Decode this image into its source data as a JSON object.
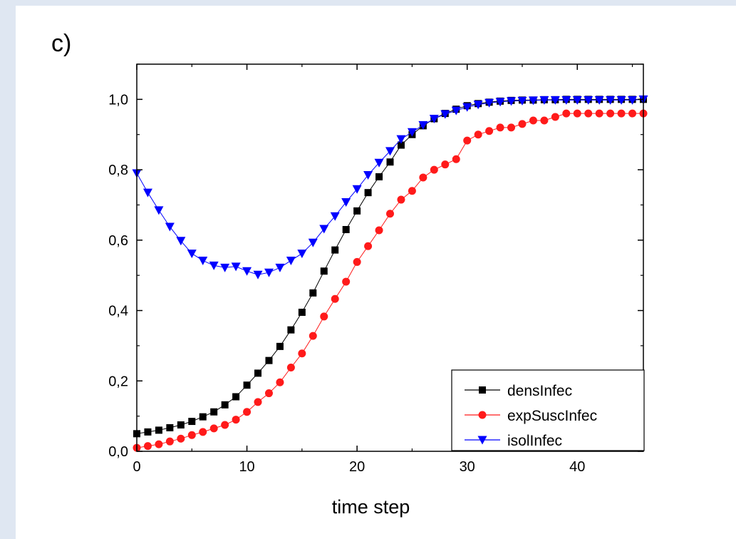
{
  "panel_label": "c)",
  "chart_data": {
    "type": "line",
    "xlabel": "time step",
    "ylabel": "",
    "xlim": [
      0,
      46
    ],
    "ylim": [
      0,
      1.1
    ],
    "x_ticks": [
      0,
      10,
      20,
      30,
      40
    ],
    "x_tick_labels": [
      "0",
      "10",
      "20",
      "30",
      "40"
    ],
    "y_ticks": [
      0.0,
      0.2,
      0.4,
      0.6,
      0.8,
      1.0
    ],
    "y_tick_labels": [
      "0,0",
      "0,2",
      "0,4",
      "0,6",
      "0,8",
      "1,0"
    ],
    "grid": false,
    "legend_position": "bottom-right",
    "x": [
      0,
      1,
      2,
      3,
      4,
      5,
      6,
      7,
      8,
      9,
      10,
      11,
      12,
      13,
      14,
      15,
      16,
      17,
      18,
      19,
      20,
      21,
      22,
      23,
      24,
      25,
      26,
      27,
      28,
      29,
      30,
      31,
      32,
      33,
      34,
      35,
      36,
      37,
      38,
      39,
      40,
      41,
      42,
      43,
      44,
      45,
      46
    ],
    "series": [
      {
        "name": "densInfec",
        "color": "#000000",
        "marker": "square",
        "values": [
          0.05,
          0.055,
          0.06,
          0.067,
          0.075,
          0.085,
          0.098,
          0.112,
          0.132,
          0.155,
          0.188,
          0.222,
          0.258,
          0.298,
          0.345,
          0.395,
          0.45,
          0.512,
          0.572,
          0.63,
          0.683,
          0.735,
          0.78,
          0.822,
          0.87,
          0.9,
          0.925,
          0.945,
          0.96,
          0.972,
          0.982,
          0.988,
          0.992,
          0.995,
          0.997,
          0.998,
          0.998,
          0.999,
          0.999,
          1.0,
          1.0,
          1.0,
          1.0,
          1.0,
          1.0,
          1.0,
          1.0
        ]
      },
      {
        "name": "expSuscInfec",
        "color": "#ff1a1a",
        "marker": "circle",
        "values": [
          0.01,
          0.015,
          0.02,
          0.028,
          0.036,
          0.046,
          0.055,
          0.065,
          0.075,
          0.09,
          0.112,
          0.14,
          0.165,
          0.196,
          0.238,
          0.278,
          0.328,
          0.383,
          0.433,
          0.482,
          0.538,
          0.583,
          0.628,
          0.675,
          0.715,
          0.74,
          0.778,
          0.8,
          0.815,
          0.83,
          0.883,
          0.9,
          0.91,
          0.92,
          0.92,
          0.93,
          0.94,
          0.94,
          0.95,
          0.96,
          0.96,
          0.96,
          0.96,
          0.96,
          0.96,
          0.96,
          0.96
        ]
      },
      {
        "name": "isolInfec",
        "color": "#0000ff",
        "marker": "triangle-down",
        "values": [
          0.79,
          0.735,
          0.685,
          0.638,
          0.598,
          0.562,
          0.542,
          0.528,
          0.522,
          0.525,
          0.512,
          0.502,
          0.508,
          0.522,
          0.542,
          0.562,
          0.593,
          0.632,
          0.668,
          0.708,
          0.745,
          0.785,
          0.82,
          0.853,
          0.887,
          0.907,
          0.927,
          0.945,
          0.958,
          0.968,
          0.978,
          0.985,
          0.99,
          0.993,
          0.995,
          0.996,
          0.997,
          0.998,
          0.998,
          0.998,
          0.998,
          0.998,
          0.998,
          0.998,
          0.998,
          0.998,
          1.0
        ]
      }
    ]
  }
}
